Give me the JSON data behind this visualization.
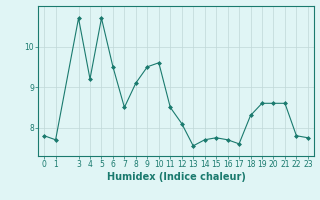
{
  "xlabel": "Humidex (Indice chaleur)",
  "x_values": [
    0,
    1,
    3,
    4,
    5,
    6,
    7,
    8,
    9,
    10,
    11,
    12,
    13,
    14,
    15,
    16,
    17,
    18,
    19,
    20,
    21,
    22,
    23
  ],
  "y_values": [
    7.8,
    7.7,
    10.7,
    9.2,
    10.7,
    9.5,
    8.5,
    9.1,
    9.5,
    9.6,
    8.5,
    8.1,
    7.55,
    7.7,
    7.75,
    7.7,
    7.6,
    8.3,
    8.6,
    8.6,
    8.6,
    7.8,
    7.75
  ],
  "line_color": "#1a7a6e",
  "marker": "D",
  "marker_size": 2,
  "bg_color": "#e0f5f5",
  "grid_color": "#c0d8d8",
  "ylim": [
    7.3,
    11.0
  ],
  "yticks": [
    8,
    9,
    10
  ],
  "xticks": [
    0,
    1,
    3,
    4,
    5,
    6,
    7,
    8,
    9,
    10,
    11,
    12,
    13,
    14,
    15,
    16,
    17,
    18,
    19,
    20,
    21,
    22,
    23
  ],
  "tick_fontsize": 5.5,
  "label_fontsize": 7.0
}
